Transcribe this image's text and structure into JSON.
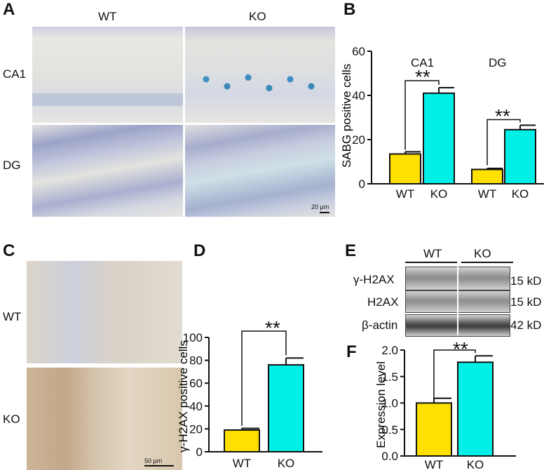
{
  "panels": {
    "A": {
      "label": "A",
      "col_labels": [
        "WT",
        "KO"
      ],
      "row_labels": [
        "CA1",
        "DG"
      ],
      "scale_bar": "20 μm"
    },
    "B": {
      "label": "B",
      "group_labels": [
        "CA1",
        "DG"
      ],
      "significance": [
        "**",
        "**"
      ]
    },
    "C": {
      "label": "C",
      "row_labels": [
        "WT",
        "KO"
      ],
      "scale_bar": "50 μm"
    },
    "D": {
      "label": "D",
      "significance": "**"
    },
    "E": {
      "label": "E",
      "col_labels": [
        "WT",
        "KO"
      ],
      "rows": [
        {
          "protein": "γ-H2AX",
          "size": "15 kD"
        },
        {
          "protein": "H2AX",
          "size": "15 kD"
        },
        {
          "protein": "β-actin",
          "size": "42 kD"
        }
      ]
    },
    "F": {
      "label": "F",
      "significance": "**"
    }
  },
  "colors": {
    "wt": "#FFE000",
    "ko": "#00F0E8"
  },
  "chart_data": [
    {
      "id": "B",
      "type": "bar",
      "ylabel": "SABG positive  cells",
      "ylim": [
        0,
        60
      ],
      "yticks": [
        "0",
        "20",
        "40",
        "60"
      ],
      "categories": [
        "WT",
        "KO",
        "WT",
        "KO"
      ],
      "groups": [
        "CA1",
        "CA1",
        "DG",
        "DG"
      ],
      "values": [
        13.5,
        41,
        6.5,
        24.5
      ],
      "errors": [
        1,
        2.5,
        0.5,
        2
      ]
    },
    {
      "id": "D",
      "type": "bar",
      "ylabel": "γ-H2AX positive  cells",
      "ylim": [
        0,
        100
      ],
      "yticks": [
        "0",
        "20",
        "40",
        "60",
        "80",
        "100"
      ],
      "categories": [
        "WT",
        "KO"
      ],
      "values": [
        19,
        76
      ],
      "errors": [
        1.5,
        6
      ]
    },
    {
      "id": "F",
      "type": "bar",
      "ylabel": "Expression  level",
      "ylim": [
        0,
        2.0
      ],
      "yticks": [
        "0.0",
        "0.5",
        "1.0",
        "1.5",
        "2.0"
      ],
      "categories": [
        "WT",
        "KO"
      ],
      "values": [
        1.0,
        1.77
      ],
      "errors": [
        0.09,
        0.12
      ]
    }
  ]
}
